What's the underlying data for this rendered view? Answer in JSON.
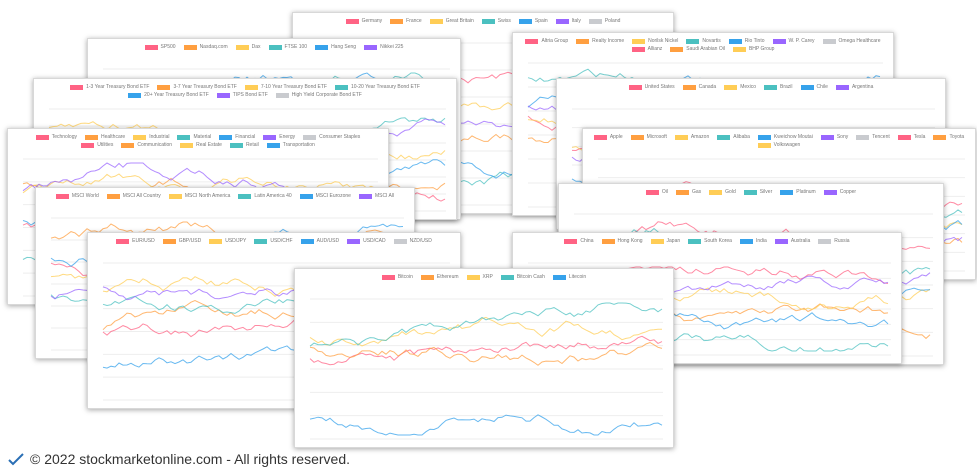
{
  "palette": [
    "#ff6384",
    "#ff9f40",
    "#ffcd56",
    "#4bc0c0",
    "#36a2eb",
    "#9966ff",
    "#c9cbcf"
  ],
  "cards": [
    {
      "legend": [
        "Germany",
        "France",
        "Great Britain",
        "Swiss",
        "Spain",
        "Italy",
        "Poland"
      ]
    },
    {
      "legend": [
        "SP500",
        "Nasdaq.com",
        "Dax",
        "FTSE 100",
        "Hang Seng",
        "Nikkei 225"
      ]
    },
    {
      "legend": [
        "Altria Group",
        "Realty Income",
        "Norilsk Nickel",
        "Novartis",
        "Rio Tinto",
        "W. P. Carey",
        "Omega Healthcare",
        "Allianz",
        "Saudi Arabian Oil",
        "BHP Group"
      ]
    },
    {
      "legend": [
        "1-3 Year Treasury Bond ETF",
        "3-7 Year Treasury Bond ETF",
        "7-10 Year Treasury Bond ETF",
        "10-20 Year Treasury Bond ETF",
        "20+ Year Treasury Bond ETF",
        "TIPS Bond ETF",
        "High Yield Corporate Bond ETF"
      ]
    },
    {
      "legend": [
        "United States",
        "Canada",
        "Mexico",
        "Brazil",
        "Chile",
        "Argentina"
      ]
    },
    {
      "legend": [
        "Technology",
        "Healthcare",
        "Industrial",
        "Material",
        "Financial",
        "Energy",
        "Consumer Staples",
        "Utilities",
        "Communication",
        "Real Estate",
        "Retail",
        "Transportation"
      ]
    },
    {
      "legend": [
        "Apple",
        "Microsoft",
        "Amazon",
        "Alibaba",
        "Kweichow Moutai",
        "Sony",
        "Tencent",
        "Tesla",
        "Toyota",
        "Volkswagen"
      ]
    },
    {
      "legend": [
        "Oil",
        "Gas",
        "Gold",
        "Silver",
        "Platinum",
        "Copper"
      ]
    },
    {
      "legend": [
        "MSCI World",
        "MSCI All Country",
        "MSCI North America",
        "Latin America 40",
        "MSCI Eurozone",
        "MSCI All"
      ]
    },
    {
      "legend": [
        "China",
        "Hong Kong",
        "Japan",
        "South Korea",
        "India",
        "Australia",
        "Russia"
      ]
    },
    {
      "legend": [
        "EUR/USD",
        "GBP/USD",
        "USD/JPY",
        "USD/CHF",
        "AUD/USD",
        "USD/CAD",
        "NZD/USD"
      ]
    },
    {
      "legend": [
        "Bitcoin",
        "Ethereum",
        "XRP",
        "Bitcoin Cash",
        "Litecoin"
      ]
    }
  ],
  "footer": "© 2022 stockmarketonline.com - All rights reserved."
}
